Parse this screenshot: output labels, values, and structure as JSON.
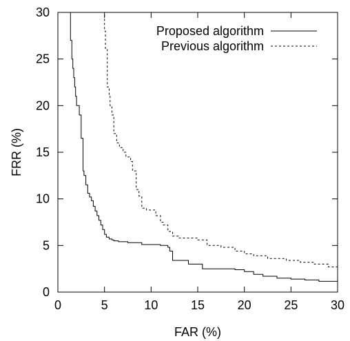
{
  "chart_data": {
    "type": "line",
    "title": "",
    "xlabel": "FAR (%)",
    "ylabel": "FRR (%)",
    "xlim": [
      0,
      30
    ],
    "ylim": [
      0,
      30
    ],
    "xticks": [
      "0",
      "5",
      "10",
      "15",
      "20",
      "25",
      "30"
    ],
    "yticks": [
      "0",
      "5",
      "10",
      "15",
      "20",
      "25",
      "30"
    ],
    "grid": false,
    "legend_position": "top-right",
    "series": [
      {
        "name": "Proposed algorithm",
        "style": "solid",
        "color": "#000000",
        "x": [
          1.2,
          1.35,
          1.5,
          1.6,
          1.7,
          1.8,
          1.9,
          2.0,
          2.1,
          2.3,
          2.5,
          2.7,
          2.8,
          3.0,
          3.2,
          3.4,
          3.6,
          3.8,
          4.0,
          4.2,
          4.4,
          4.6,
          4.8,
          5.0,
          5.2,
          5.5,
          5.8,
          6.0,
          6.5,
          7.5,
          9.0,
          11.0,
          11.8,
          12.0,
          12.3,
          14.0,
          15.5,
          19.0,
          20.0,
          21.0,
          22.0,
          23.5,
          25.0,
          26.5,
          28.0,
          30.0
        ],
        "y": [
          30,
          27,
          25,
          24,
          23,
          22,
          21,
          20,
          20,
          19,
          16.5,
          13,
          12.5,
          11.5,
          10.6,
          10.2,
          9.8,
          9.2,
          8.7,
          8.2,
          7.7,
          7.2,
          6.7,
          6.2,
          5.9,
          5.7,
          5.6,
          5.5,
          5.4,
          5.3,
          5.1,
          5.0,
          4.8,
          4.4,
          3.4,
          3.0,
          2.5,
          2.4,
          2.2,
          1.9,
          1.7,
          1.5,
          1.4,
          1.3,
          1.15,
          1.15
        ]
      },
      {
        "name": "Previous algorithm",
        "style": "dashed",
        "color": "#000000",
        "x": [
          4.8,
          5.0,
          5.1,
          5.3,
          5.5,
          5.6,
          5.8,
          6.0,
          6.3,
          6.6,
          7.0,
          7.3,
          7.8,
          8.0,
          8.4,
          8.7,
          9.0,
          9.5,
          10.5,
          11.0,
          11.3,
          11.8,
          12.3,
          13.0,
          15.0,
          16.0,
          17.5,
          19.0,
          20.0,
          21.0,
          22.5,
          24.5,
          26.0,
          27.5,
          29.0,
          30.0
        ],
        "y": [
          30,
          28,
          26,
          22,
          21,
          20,
          19,
          17,
          16,
          15.5,
          15,
          14.5,
          14,
          13,
          11,
          10.3,
          9,
          8.8,
          8.2,
          7.5,
          7.2,
          6.5,
          6.0,
          5.8,
          5.6,
          5.0,
          4.8,
          4.4,
          4.1,
          3.9,
          3.6,
          3.4,
          3.2,
          3.0,
          2.7,
          2.5
        ]
      }
    ]
  }
}
